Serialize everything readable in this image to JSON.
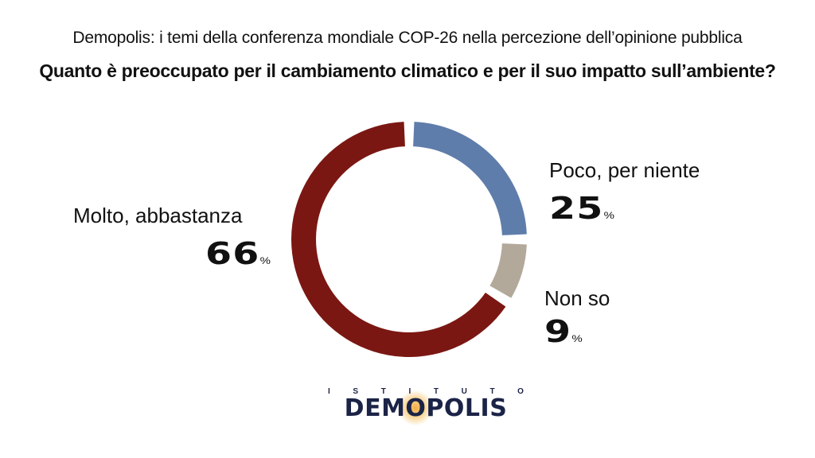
{
  "header": {
    "subtitle": "Demopolis: i temi della conferenza mondiale COP-26 nella percezione dell’opinione pubblica",
    "title": "Quanto è preoccupato per il cambiamento climatico e per il suo impatto sull’ambiente?"
  },
  "chart_data": {
    "type": "pie",
    "subtitle": "Demopolis: i temi della conferenza mondiale COP-26 nella percezione dell’opinione pubblica",
    "title": "Quanto è preoccupato per il cambiamento climatico e per il suo impatto sull’ambiente?",
    "unit": "%",
    "slices": [
      {
        "label": "Molto, abbastanza",
        "value": 66,
        "value_text": "66",
        "color": "#7b1712"
      },
      {
        "label": "Poco, per niente",
        "value": 25,
        "value_text": "25",
        "color": "#5f7dab"
      },
      {
        "label": "Non so",
        "value": 9,
        "value_text": "9",
        "color": "#b2a99b"
      }
    ]
  },
  "logo": {
    "top_letters": [
      "I",
      "S",
      "T",
      "I",
      "T",
      "U",
      "T",
      "O"
    ],
    "name": "DEMOPOLIS"
  }
}
